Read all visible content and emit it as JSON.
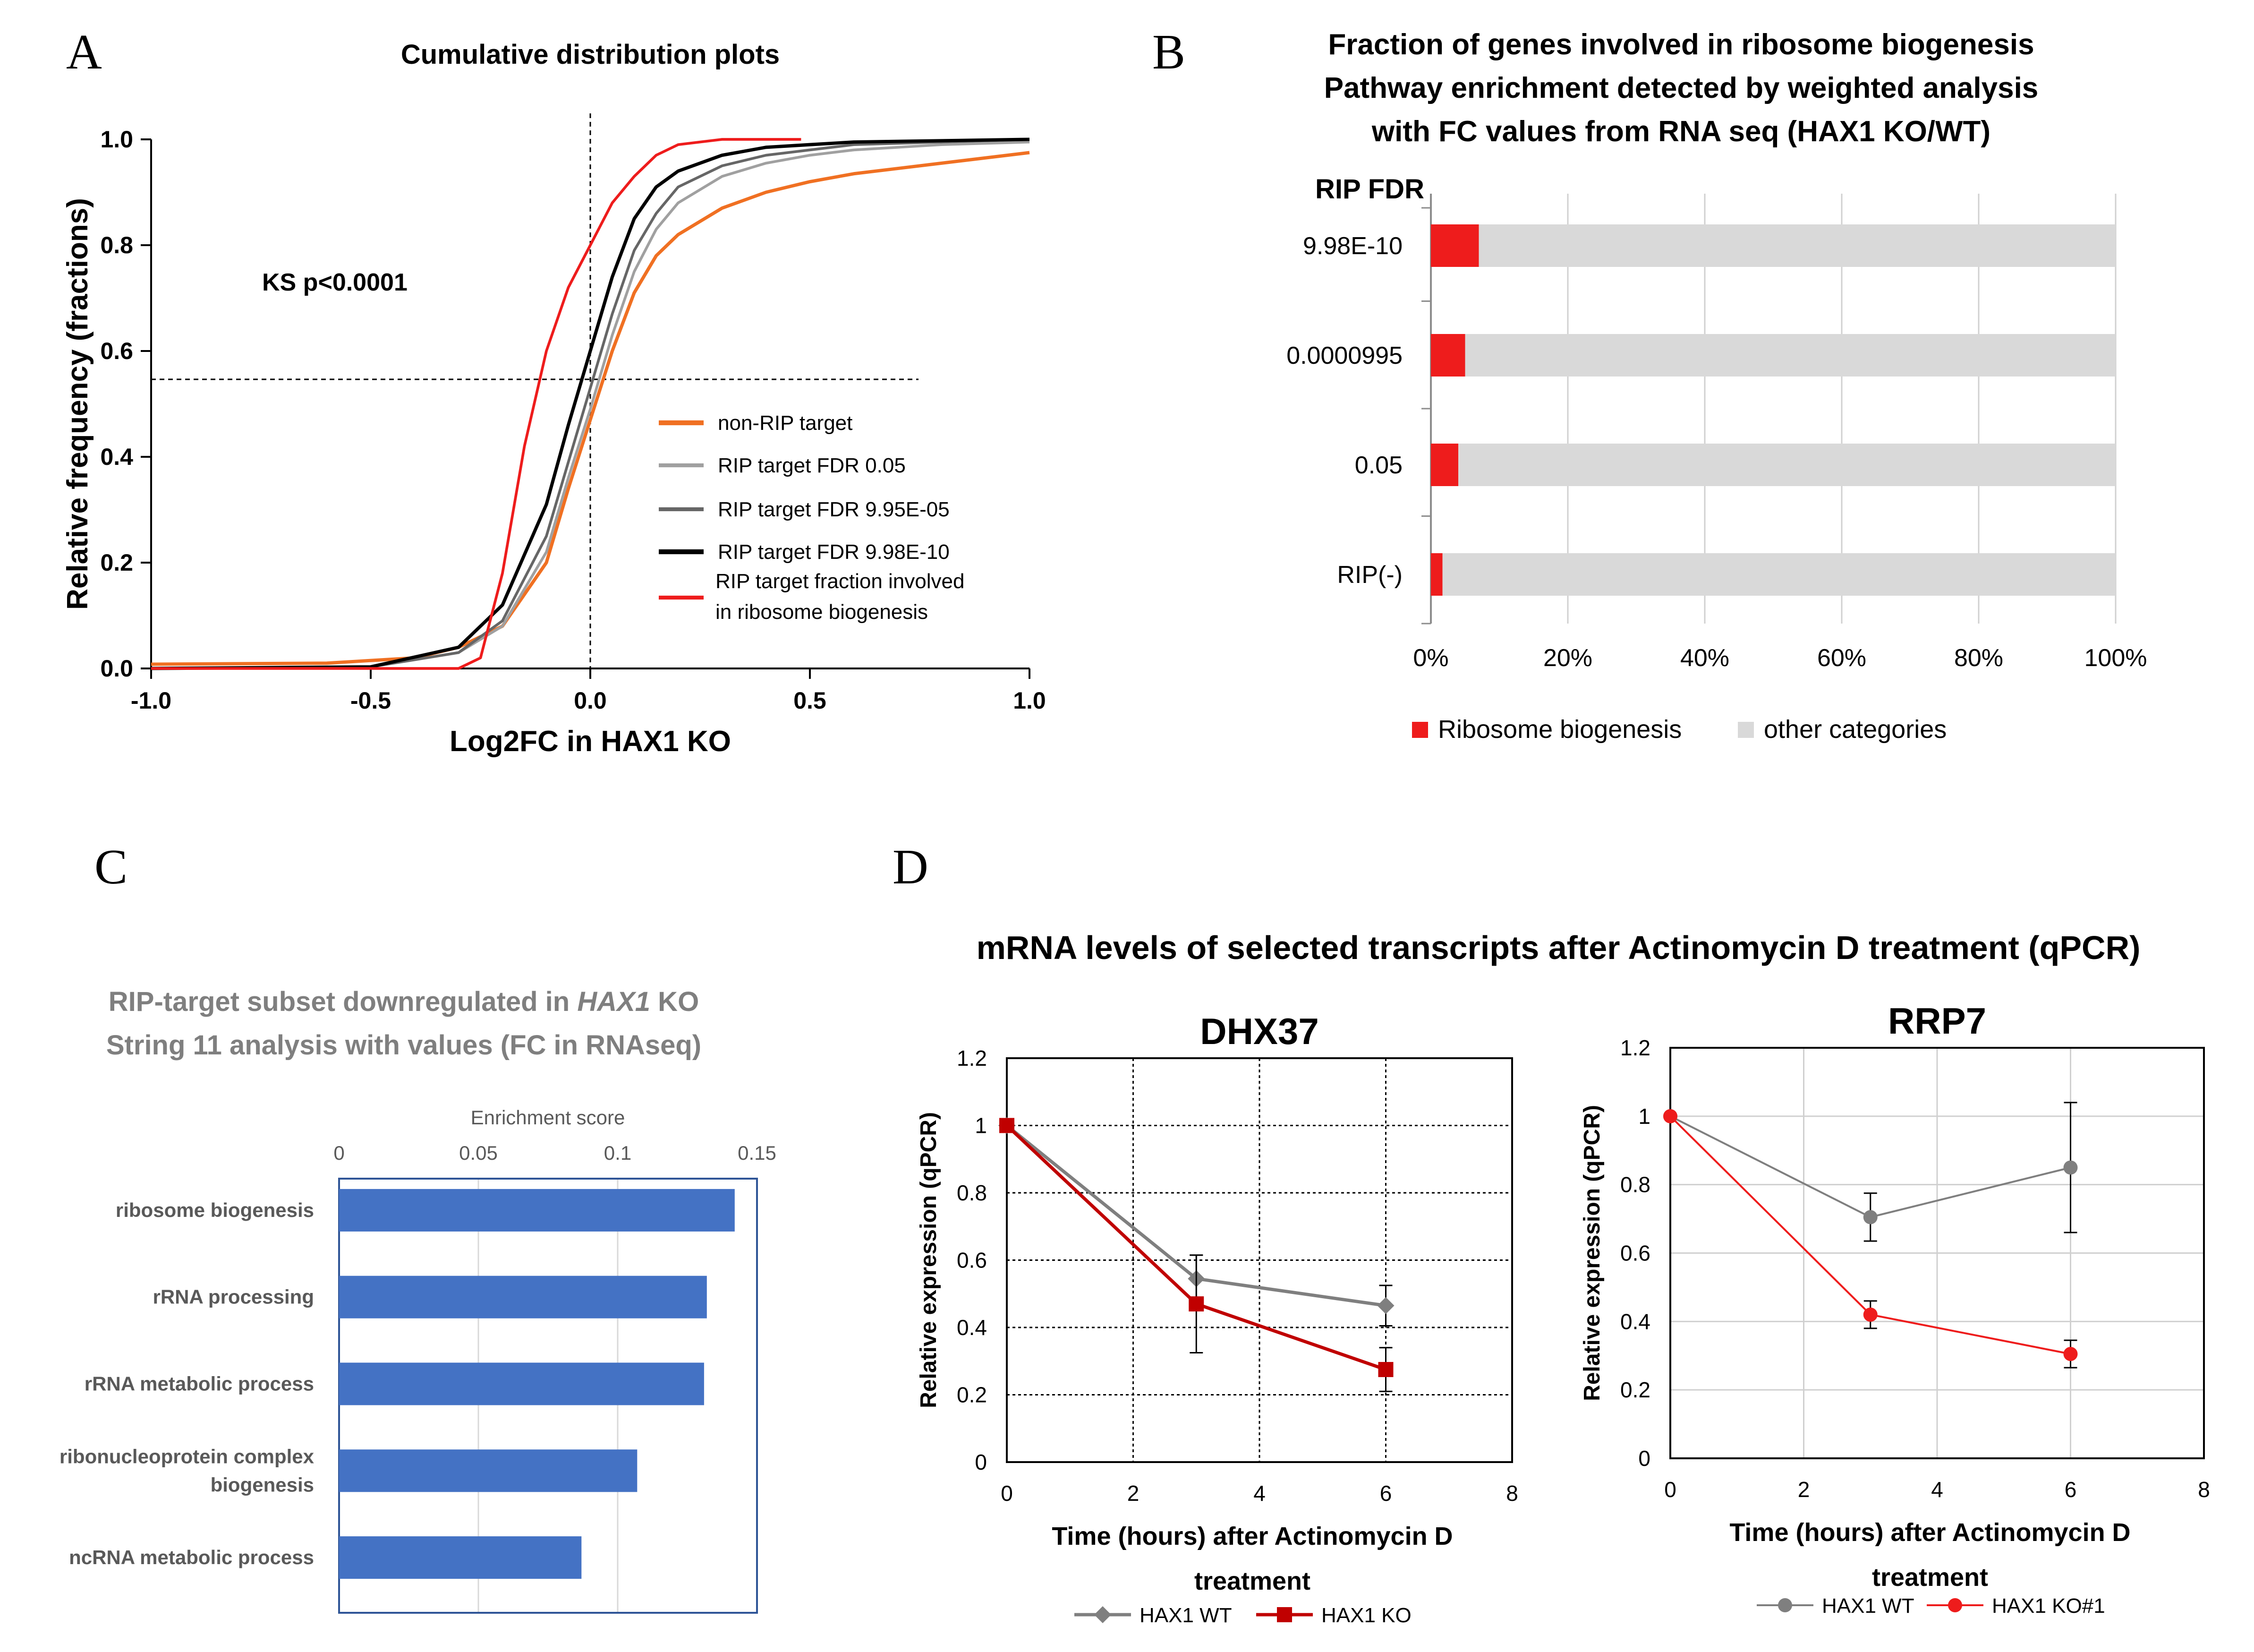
{
  "panel_letters": {
    "a": "A",
    "b": "B",
    "c": "C",
    "d": "D"
  },
  "panel_d_title": "mRNA levels of selected transcripts after Actinomycin D treatment (qPCR)",
  "colors": {
    "orange": "#f07022",
    "light_gray": "#a0a0a0",
    "dark_gray": "#666666",
    "black": "#000000",
    "red": "#ee1c1c",
    "bar_blue": "#4472c4",
    "frame_blue": "#2f5597",
    "gray_fill": "#d9d9d9",
    "wt_gray": "#7f7f7f",
    "ko_dark_red": "#c00000"
  },
  "chart_data": [
    {
      "id": "A",
      "type": "line",
      "title": "Cumulative distribution plots",
      "xlabel": "Log2FC in HAX1 KO",
      "ylabel": "Relative frequency (fractions)",
      "xlim": [
        -1.0,
        1.0
      ],
      "ylim": [
        0.0,
        1.0
      ],
      "xticks": [
        -1.0,
        -0.5,
        0.0,
        0.5,
        1.0
      ],
      "yticks": [
        0.0,
        0.2,
        0.4,
        0.6,
        0.8,
        1.0
      ],
      "xtick_labels": [
        "-1.0",
        "-0.5",
        "0.0",
        "0.5",
        "1.0"
      ],
      "ytick_labels": [
        "0.0",
        "0.2",
        "0.4",
        "0.6",
        "0.8",
        "1.0"
      ],
      "annotation": "KS p<0.0001",
      "reference_lines": {
        "vertical_x": 0.0,
        "horizontal_y": 0.5
      },
      "series": [
        {
          "name": "non-RIP target",
          "color": "#f07022",
          "width": 3.2,
          "points": [
            [
              -1.0,
              0.008
            ],
            [
              -0.6,
              0.01
            ],
            [
              -0.4,
              0.02
            ],
            [
              -0.3,
              0.04
            ],
            [
              -0.2,
              0.08
            ],
            [
              -0.1,
              0.2
            ],
            [
              -0.05,
              0.34
            ],
            [
              0.0,
              0.47
            ],
            [
              0.05,
              0.6
            ],
            [
              0.1,
              0.71
            ],
            [
              0.15,
              0.78
            ],
            [
              0.2,
              0.82
            ],
            [
              0.3,
              0.87
            ],
            [
              0.4,
              0.9
            ],
            [
              0.5,
              0.92
            ],
            [
              0.6,
              0.935
            ],
            [
              0.8,
              0.955
            ],
            [
              1.0,
              0.975
            ]
          ]
        },
        {
          "name": "RIP target FDR 0.05",
          "color": "#a0a0a0",
          "width": 2.6,
          "points": [
            [
              -1.0,
              0.0
            ],
            [
              -0.5,
              0.003
            ],
            [
              -0.3,
              0.03
            ],
            [
              -0.2,
              0.08
            ],
            [
              -0.1,
              0.22
            ],
            [
              -0.05,
              0.36
            ],
            [
              0.0,
              0.49
            ],
            [
              0.05,
              0.63
            ],
            [
              0.1,
              0.75
            ],
            [
              0.15,
              0.83
            ],
            [
              0.2,
              0.88
            ],
            [
              0.3,
              0.93
            ],
            [
              0.4,
              0.955
            ],
            [
              0.5,
              0.97
            ],
            [
              0.6,
              0.98
            ],
            [
              0.8,
              0.99
            ],
            [
              1.0,
              0.995
            ]
          ]
        },
        {
          "name": "RIP target FDR 9.95E-05",
          "color": "#666666",
          "width": 2.6,
          "points": [
            [
              -1.0,
              0.0
            ],
            [
              -0.5,
              0.003
            ],
            [
              -0.3,
              0.03
            ],
            [
              -0.2,
              0.09
            ],
            [
              -0.1,
              0.25
            ],
            [
              -0.05,
              0.39
            ],
            [
              0.0,
              0.53
            ],
            [
              0.05,
              0.67
            ],
            [
              0.1,
              0.79
            ],
            [
              0.15,
              0.86
            ],
            [
              0.2,
              0.91
            ],
            [
              0.3,
              0.95
            ],
            [
              0.4,
              0.97
            ],
            [
              0.5,
              0.98
            ],
            [
              0.6,
              0.99
            ],
            [
              0.8,
              0.995
            ],
            [
              1.0,
              1.0
            ]
          ]
        },
        {
          "name": "RIP target FDR 9.98E-10",
          "color": "#000000",
          "width": 3.2,
          "points": [
            [
              -1.0,
              0.0
            ],
            [
              -0.5,
              0.003
            ],
            [
              -0.3,
              0.04
            ],
            [
              -0.2,
              0.12
            ],
            [
              -0.1,
              0.31
            ],
            [
              -0.05,
              0.46
            ],
            [
              0.0,
              0.6
            ],
            [
              0.05,
              0.74
            ],
            [
              0.1,
              0.85
            ],
            [
              0.15,
              0.91
            ],
            [
              0.2,
              0.94
            ],
            [
              0.3,
              0.97
            ],
            [
              0.4,
              0.985
            ],
            [
              0.5,
              0.99
            ],
            [
              0.6,
              0.995
            ],
            [
              1.0,
              1.0
            ]
          ]
        },
        {
          "name": "RIP target fraction involved in ribosome biogenesis",
          "color": "#ee1c1c",
          "width": 2.6,
          "points": [
            [
              -1.0,
              0.0
            ],
            [
              -0.5,
              0.0
            ],
            [
              -0.3,
              0.0
            ],
            [
              -0.25,
              0.02
            ],
            [
              -0.2,
              0.18
            ],
            [
              -0.15,
              0.42
            ],
            [
              -0.1,
              0.6
            ],
            [
              -0.05,
              0.72
            ],
            [
              0.0,
              0.8
            ],
            [
              0.05,
              0.88
            ],
            [
              0.1,
              0.93
            ],
            [
              0.15,
              0.97
            ],
            [
              0.2,
              0.99
            ],
            [
              0.3,
              1.0
            ],
            [
              0.48,
              1.0
            ]
          ]
        }
      ],
      "legend": [
        {
          "label": "non-RIP target"
        },
        {
          "label": "RIP target FDR 0.05"
        },
        {
          "label": "RIP target FDR 9.95E-05"
        },
        {
          "label": "RIP target FDR 9.98E-10"
        },
        {
          "label_lines": [
            "RIP target fraction involved",
            " in ribosome biogenesis"
          ]
        }
      ]
    },
    {
      "id": "B",
      "type": "bar",
      "orientation": "horizontal",
      "stacked": "percent",
      "title_lines": [
        "Fraction of genes involved in ribosome biogenesis",
        "Pathway enrichment detected by weighted analysis",
        "with FC values from RNA seq (HAX1 KO/WT)"
      ],
      "category_header": "RIP FDR",
      "categories": [
        "9.98E-10",
        "0.0000995",
        "0.05",
        "RIP(-)"
      ],
      "series": [
        {
          "name": "Ribosome biogenesis",
          "color": "#ee1c1c",
          "values": [
            7.0,
            5.0,
            4.0,
            1.7
          ]
        },
        {
          "name": "other categories",
          "color": "#d9d9d9",
          "values": [
            93.0,
            95.0,
            96.0,
            98.3
          ]
        }
      ],
      "xlim": [
        0,
        100
      ],
      "xticks": [
        0,
        20,
        40,
        60,
        80,
        100
      ],
      "xtick_labels": [
        "0%",
        "20%",
        "40%",
        "60%",
        "80%",
        "100%"
      ]
    },
    {
      "id": "C",
      "type": "bar",
      "orientation": "horizontal",
      "title_parts": [
        {
          "text": "RIP-target subset downregulated in ",
          "italic": false
        },
        {
          "text": "HAX1",
          "italic": true
        },
        {
          "text": " KO",
          "italic": false
        }
      ],
      "title_line2": "String 11 analysis with values (FC in RNAseq)",
      "xlabel": "Enrichment score",
      "xlim": [
        0,
        0.15
      ],
      "xticks": [
        0,
        0.05,
        0.1,
        0.15
      ],
      "xtick_labels": [
        "0",
        "0.05",
        "0.1",
        "0.15"
      ],
      "categories": [
        [
          "ribosome biogenesis"
        ],
        [
          "rRNA processing"
        ],
        [
          "rRNA metabolic process"
        ],
        [
          "ribonucleoprotein complex",
          "biogenesis"
        ],
        [
          "ncRNA metabolic process"
        ]
      ],
      "values": [
        0.142,
        0.132,
        0.131,
        0.107,
        0.087
      ]
    },
    {
      "id": "D1",
      "type": "line",
      "title": "DHX37",
      "xlabel_lines": [
        "Time (hours) after Actinomycin D",
        "treatment"
      ],
      "ylabel": "Relative expression (qPCR)",
      "xlim": [
        0,
        8
      ],
      "ylim": [
        0,
        1.2
      ],
      "xticks": [
        0,
        2,
        4,
        6,
        8
      ],
      "yticks": [
        0,
        0.2,
        0.4,
        0.6,
        0.8,
        1,
        1.2
      ],
      "xtick_labels": [
        "0",
        "2",
        "4",
        "6",
        "8"
      ],
      "ytick_labels": [
        "0",
        "0.2",
        "0.4",
        "0.6",
        "0.8",
        "1",
        "1.2"
      ],
      "series": [
        {
          "name": "HAX1 WT",
          "color": "#7f7f7f",
          "marker": "diamond",
          "x": [
            0,
            3,
            6
          ],
          "y": [
            1.0,
            0.545,
            0.465
          ],
          "err": [
            0,
            0.07,
            0.06
          ]
        },
        {
          "name": "HAX1 KO",
          "color": "#c00000",
          "marker": "square",
          "x": [
            0,
            3,
            6
          ],
          "y": [
            1.0,
            0.47,
            0.275
          ],
          "err": [
            0,
            0.145,
            0.065
          ]
        }
      ]
    },
    {
      "id": "D2",
      "type": "line",
      "title": "RRP7",
      "xlabel_lines": [
        "Time (hours) after Actinomycin D",
        "treatment"
      ],
      "ylabel": "Relative expression (qPCR)",
      "xlim": [
        0,
        8
      ],
      "ylim": [
        0,
        1.2
      ],
      "xticks": [
        0,
        2,
        4,
        6,
        8
      ],
      "yticks": [
        0,
        0.2,
        0.4,
        0.6,
        0.8,
        1,
        1.2
      ],
      "xtick_labels": [
        "0",
        "2",
        "4",
        "6",
        "8"
      ],
      "ytick_labels": [
        "0",
        "0.2",
        "0.4",
        "0.6",
        "0.8",
        "1",
        "1.2"
      ],
      "series": [
        {
          "name": "HAX1 WT",
          "color": "#7f7f7f",
          "marker": "circle",
          "x": [
            0,
            3,
            6
          ],
          "y": [
            1.0,
            0.705,
            0.85
          ],
          "err": [
            0,
            0.07,
            0.19
          ]
        },
        {
          "name": "HAX1 KO#1",
          "color": "#ee1c1c",
          "marker": "circle",
          "x": [
            0,
            3,
            6
          ],
          "y": [
            1.0,
            0.42,
            0.305
          ],
          "err": [
            0,
            0.04,
            0.04
          ]
        }
      ]
    }
  ]
}
